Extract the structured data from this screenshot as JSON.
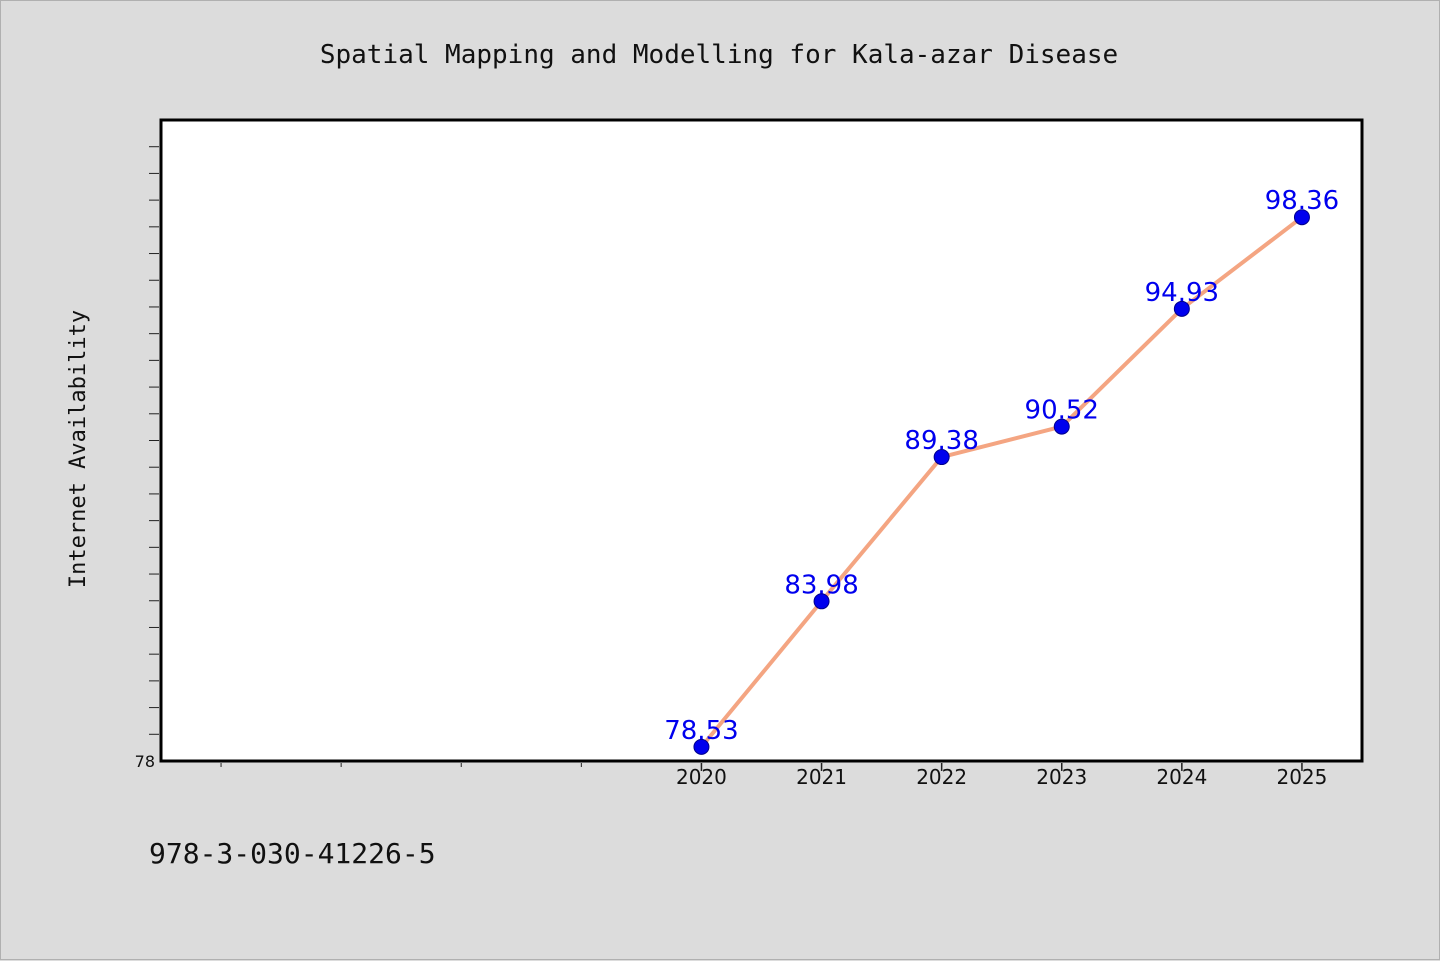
{
  "chart_data": {
    "type": "line",
    "title": "Spatial Mapping and Modelling for Kala-azar Disease",
    "ylabel": "Internet Availability",
    "xlabel": "",
    "categories": [
      "2020",
      "2021",
      "2022",
      "2023",
      "2024",
      "2025"
    ],
    "series": [
      {
        "values": [
          78.53,
          83.98,
          89.38,
          90.52,
          94.93,
          98.36
        ]
      }
    ],
    "data_labels": [
      "78.53",
      "83.98",
      "89.38",
      "90.52",
      "94.93",
      "98.36"
    ],
    "y_tick_labels": [
      "78"
    ],
    "ylim": [
      78,
      102
    ],
    "grid": false,
    "line_color": "#f4a582",
    "marker_color": "#0000ee"
  },
  "footer": {
    "isbn": "978-3-030-41226-5"
  }
}
